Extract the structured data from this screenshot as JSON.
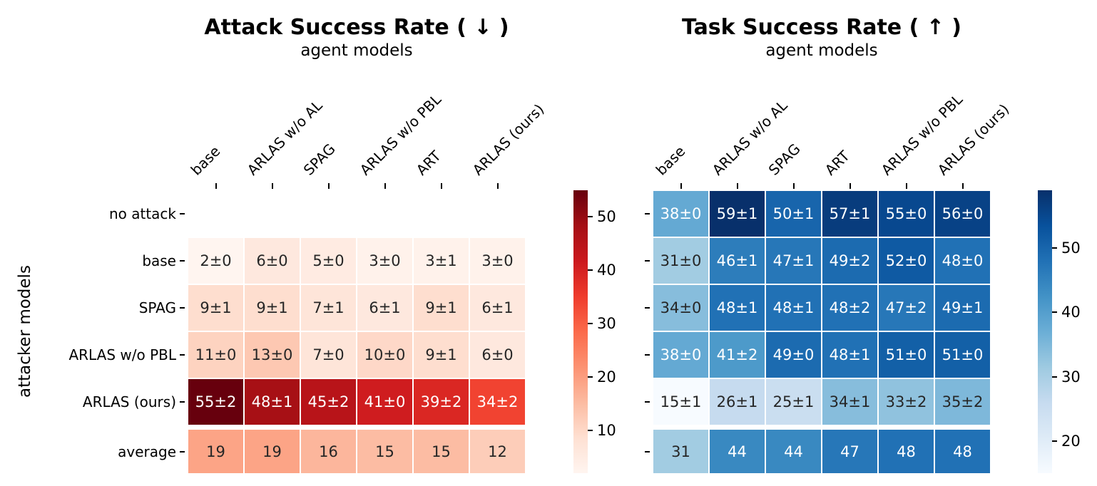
{
  "figure": {
    "background": "#ffffff",
    "annotation_text_colors": {
      "dark": "#262626",
      "light": "#ffffff"
    }
  },
  "chart_data": [
    {
      "type": "heatmap",
      "title": "Attack Success Rate ( ↓ )",
      "subtitle": "agent models",
      "ylabel": "attacker models",
      "columns": [
        "base",
        "ARLAS w/o AL",
        "SPAG",
        "ARLAS w/o PBL",
        "ART",
        "ARLAS (ours)"
      ],
      "rows": [
        "no attack",
        "base",
        "SPAG",
        "ARLAS w/o PBL",
        "ARLAS (ours)"
      ],
      "average_row_label": "average",
      "labels": [
        [
          null,
          null,
          null,
          null,
          null,
          null
        ],
        [
          "2±0",
          "6±0",
          "5±0",
          "3±0",
          "3±1",
          "3±0"
        ],
        [
          "9±1",
          "9±1",
          "7±1",
          "6±1",
          "9±1",
          "6±1"
        ],
        [
          "11±0",
          "13±0",
          "7±0",
          "10±0",
          "9±1",
          "6±0"
        ],
        [
          "55±2",
          "48±1",
          "45±2",
          "41±0",
          "39±2",
          "34±2"
        ]
      ],
      "values": [
        [
          null,
          null,
          null,
          null,
          null,
          null
        ],
        [
          2,
          6,
          5,
          3,
          3,
          3
        ],
        [
          9,
          9,
          7,
          6,
          9,
          6
        ],
        [
          11,
          13,
          7,
          10,
          9,
          6
        ],
        [
          55,
          48,
          45,
          41,
          39,
          34
        ]
      ],
      "average_labels": [
        "19",
        "19",
        "16",
        "15",
        "15",
        "12"
      ],
      "average_values": [
        19,
        19,
        16,
        15,
        15,
        12
      ],
      "colormap": "Reds",
      "colormap_colors": [
        "#fff5f0",
        "#fee0d2",
        "#fcbba1",
        "#fc9272",
        "#fb6a4a",
        "#ef3b2c",
        "#cb181d",
        "#a50f15",
        "#67000d"
      ],
      "vmin": 2,
      "vmax": 55,
      "colorbar_ticks": [
        10,
        20,
        30,
        40,
        50
      ],
      "legend_position": "right-colorbar",
      "grid": false
    },
    {
      "type": "heatmap",
      "title": "Task Success Rate ( ↑ )",
      "subtitle": "agent models",
      "ylabel": "",
      "columns": [
        "base",
        "ARLAS w/o AL",
        "SPAG",
        "ART",
        "ARLAS w/o PBL",
        "ARLAS (ours)"
      ],
      "rows": [
        "no attack",
        "base",
        "SPAG",
        "ARLAS w/o PBL",
        "ARLAS (ours)"
      ],
      "average_row_label": "average",
      "labels": [
        [
          "38±0",
          "59±1",
          "50±1",
          "57±1",
          "55±0",
          "56±0"
        ],
        [
          "31±0",
          "46±1",
          "47±1",
          "49±2",
          "52±0",
          "48±0"
        ],
        [
          "34±0",
          "48±1",
          "48±1",
          "48±2",
          "47±2",
          "49±1"
        ],
        [
          "38±0",
          "41±2",
          "49±0",
          "48±1",
          "51±0",
          "51±0"
        ],
        [
          "15±1",
          "26±1",
          "25±1",
          "34±1",
          "33±2",
          "35±2"
        ]
      ],
      "values": [
        [
          38,
          59,
          50,
          57,
          55,
          56
        ],
        [
          31,
          46,
          47,
          49,
          52,
          48
        ],
        [
          34,
          48,
          48,
          48,
          47,
          49
        ],
        [
          38,
          41,
          49,
          48,
          51,
          51
        ],
        [
          15,
          26,
          25,
          34,
          33,
          35
        ]
      ],
      "average_labels": [
        "31",
        "44",
        "44",
        "47",
        "48",
        "48"
      ],
      "average_values": [
        31,
        44,
        44,
        47,
        48,
        48
      ],
      "colormap": "Blues",
      "colormap_colors": [
        "#f7fbff",
        "#deebf7",
        "#c6dbef",
        "#9ecae1",
        "#6baed6",
        "#4292c6",
        "#2171b5",
        "#08519c",
        "#08306b"
      ],
      "vmin": 15,
      "vmax": 59,
      "colorbar_ticks": [
        20,
        30,
        40,
        50
      ],
      "legend_position": "right-colorbar",
      "grid": false
    }
  ]
}
